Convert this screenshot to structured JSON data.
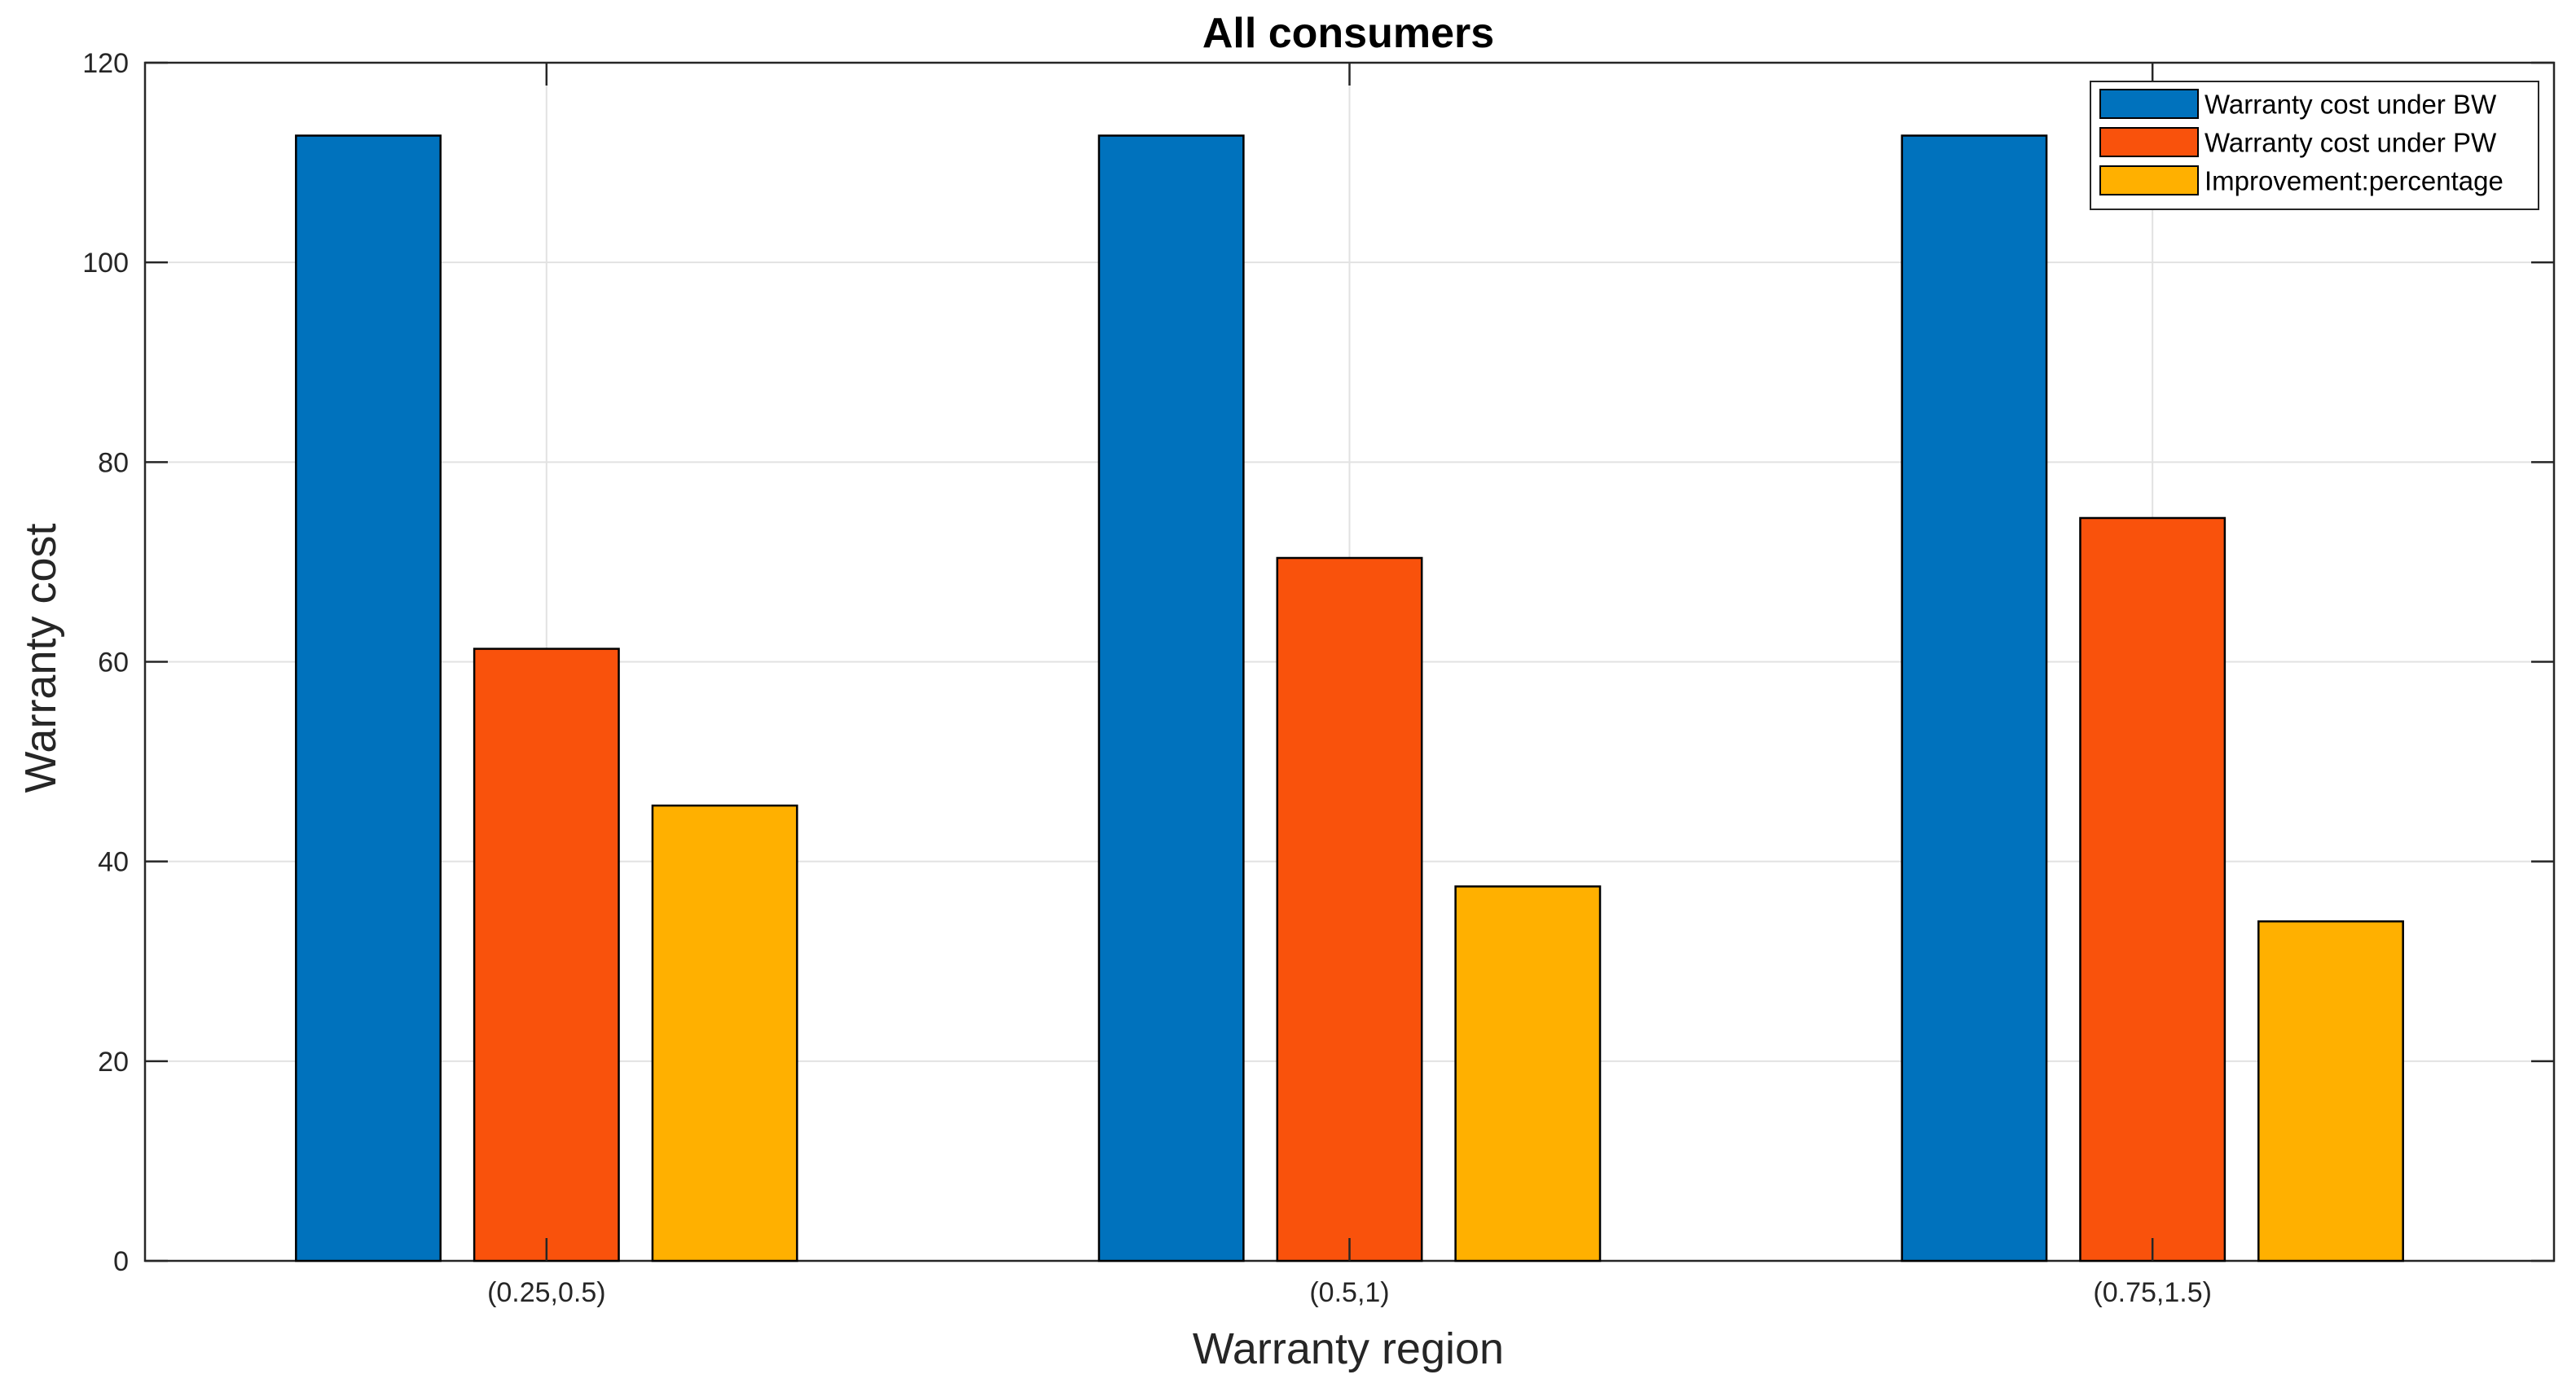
{
  "chart_data": {
    "type": "bar",
    "title": "All consumers",
    "xlabel": "Warranty region",
    "ylabel": "Warranty cost",
    "categories": [
      "(0.25,0.5)",
      "(0.5,1)",
      "(0.75,1.5)"
    ],
    "ylim": [
      0,
      120
    ],
    "yticks": [
      0,
      20,
      40,
      60,
      80,
      100,
      120
    ],
    "ytick_labels": [
      "0",
      "20",
      "40",
      "60",
      "80",
      "100",
      "120"
    ],
    "grid": true,
    "legend_position": "top-right",
    "series": [
      {
        "name": "Warranty cost under BW",
        "color": "#0072BD",
        "values": [
          112.7,
          112.7,
          112.7
        ]
      },
      {
        "name": "Warranty cost under PW",
        "color": "#F9520C",
        "values": [
          61.3,
          70.4,
          74.4
        ]
      },
      {
        "name": "Improvement:percentage",
        "color": "#FFB000",
        "values": [
          45.6,
          37.5,
          34.0
        ]
      }
    ]
  }
}
